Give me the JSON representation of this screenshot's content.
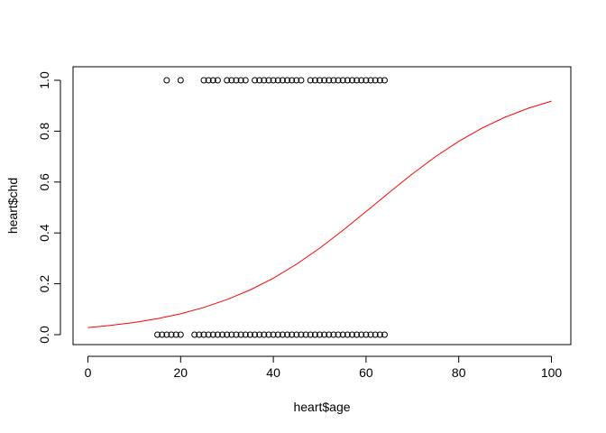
{
  "chart_data": {
    "type": "scatter",
    "title": "",
    "xlabel": "heart$age",
    "ylabel": "heart$chd",
    "xlim": [
      -2,
      104
    ],
    "ylim": [
      -0.04,
      1.04
    ],
    "x_ticks": [
      0,
      20,
      40,
      60,
      80,
      100
    ],
    "y_ticks": [
      0.0,
      0.2,
      0.4,
      0.6,
      0.8,
      1.0
    ],
    "x_tick_labels": [
      "0",
      "20",
      "40",
      "60",
      "80",
      "100"
    ],
    "y_tick_labels": [
      "0.0",
      "0.2",
      "0.4",
      "0.6",
      "0.8",
      "1.0"
    ],
    "grid": false,
    "legend": null,
    "colors": {
      "points": "#000000",
      "curve": "#ff0000"
    },
    "points": {
      "y1_ages": [
        17,
        20,
        25,
        26,
        27,
        28,
        30,
        31,
        32,
        33,
        34,
        36,
        37,
        38,
        39,
        40,
        41,
        42,
        43,
        44,
        45,
        46,
        48,
        49,
        50,
        51,
        52,
        53,
        54,
        55,
        56,
        57,
        58,
        59,
        60,
        61,
        62,
        63,
        64
      ],
      "y0_ages": [
        15,
        16,
        17,
        18,
        19,
        20,
        23,
        24,
        25,
        26,
        27,
        28,
        29,
        30,
        31,
        32,
        33,
        34,
        35,
        36,
        37,
        38,
        39,
        40,
        41,
        42,
        43,
        44,
        45,
        46,
        47,
        48,
        49,
        50,
        51,
        52,
        53,
        54,
        55,
        56,
        57,
        58,
        59,
        60,
        61,
        62,
        63,
        64
      ]
    },
    "fit_curve": {
      "type": "logistic",
      "x": [
        0,
        5,
        10,
        15,
        20,
        25,
        30,
        35,
        40,
        45,
        50,
        55,
        60,
        65,
        70,
        75,
        80,
        85,
        90,
        95,
        100
      ],
      "y": [
        0.028,
        0.037,
        0.048,
        0.063,
        0.082,
        0.107,
        0.138,
        0.176,
        0.222,
        0.277,
        0.34,
        0.41,
        0.484,
        0.559,
        0.632,
        0.7,
        0.76,
        0.812,
        0.855,
        0.89,
        0.918
      ]
    }
  }
}
